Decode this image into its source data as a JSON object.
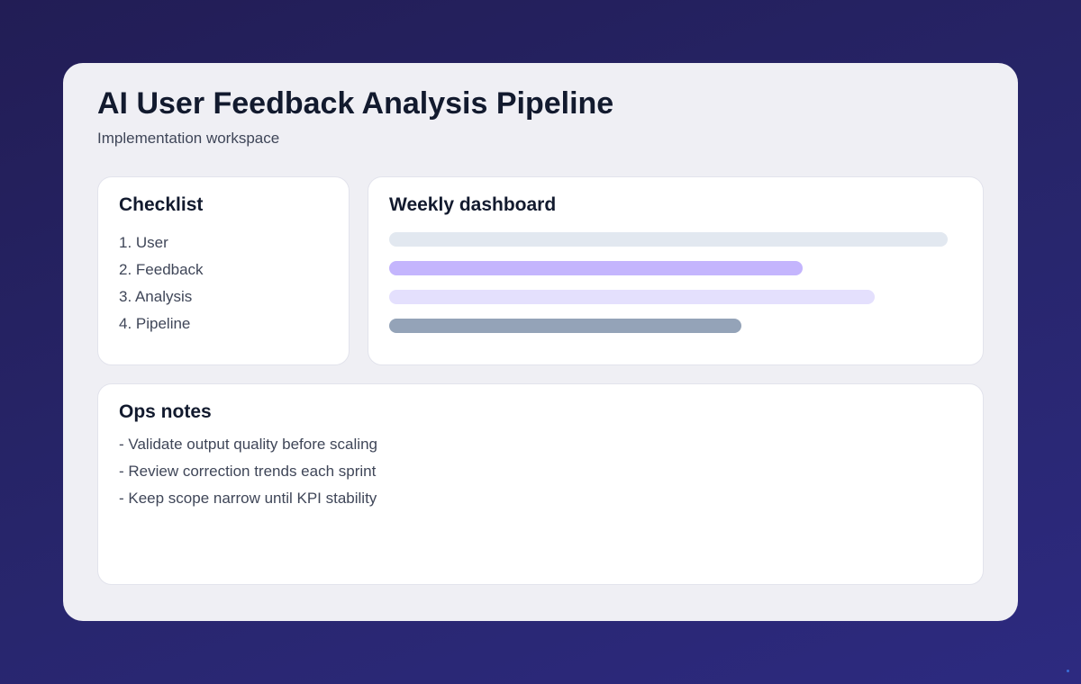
{
  "header": {
    "title": "AI User Feedback Analysis Pipeline",
    "subtitle": "Implementation workspace"
  },
  "checklist": {
    "title": "Checklist",
    "items": [
      "1. User",
      "2. Feedback",
      "3. Analysis",
      "4. Pipeline"
    ]
  },
  "dashboard": {
    "title": "Weekly dashboard",
    "bars": [
      {
        "percent": 100,
        "color": "#e2e8f0"
      },
      {
        "percent": 74,
        "color": "#c4b5fd"
      },
      {
        "percent": 87,
        "color": "#e4e0fd"
      },
      {
        "percent": 63,
        "color": "#94a3b8"
      }
    ]
  },
  "notes": {
    "title": "Ops notes",
    "items": [
      "- Validate output quality before scaling",
      "- Review correction trends each sprint",
      "- Keep scope narrow until KPI stability"
    ]
  }
}
